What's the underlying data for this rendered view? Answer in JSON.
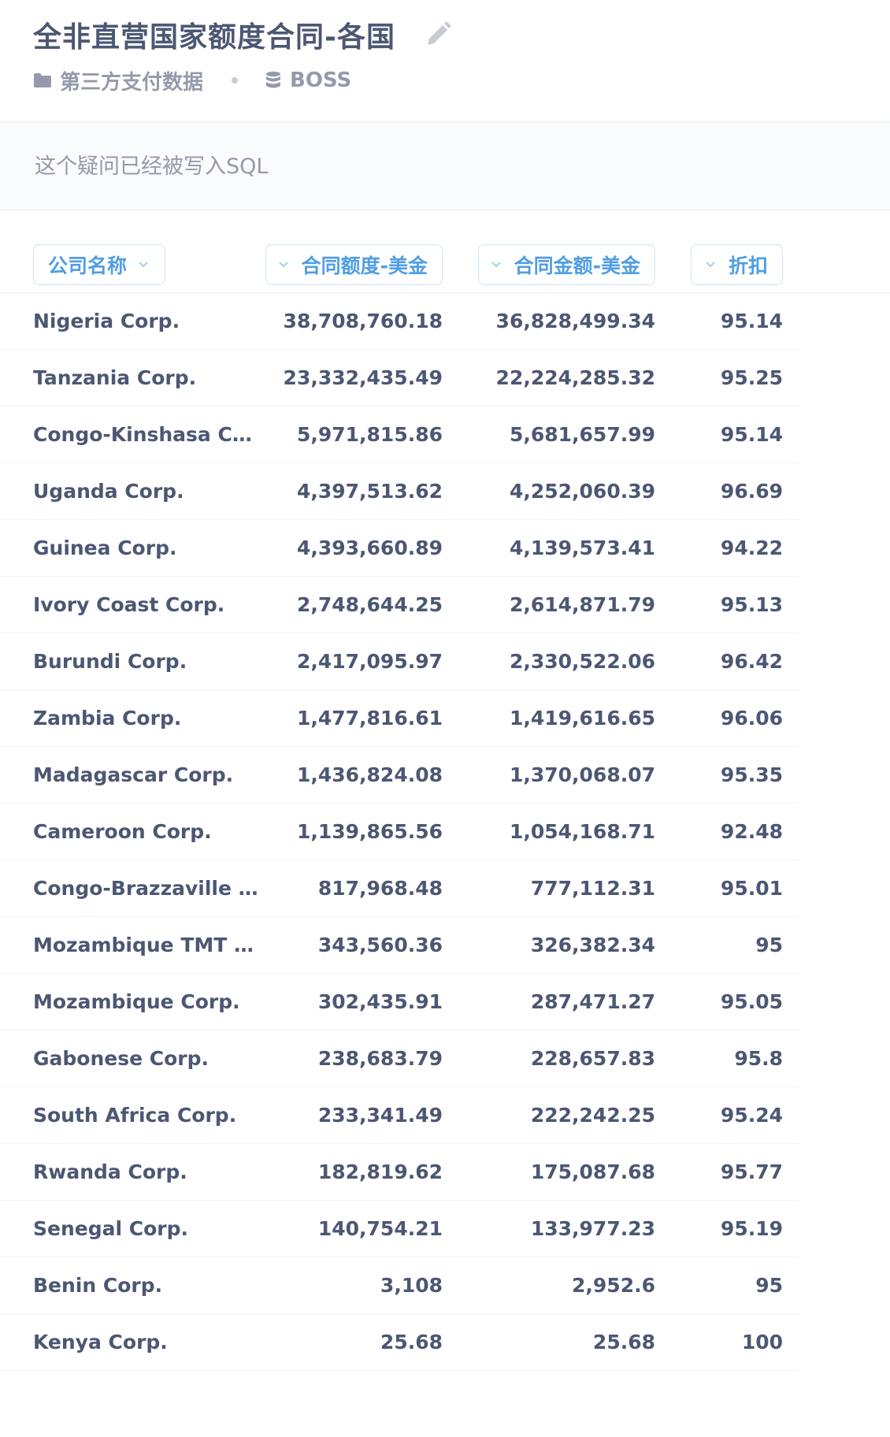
{
  "header": {
    "title": "全非直营国家额度合同-各国",
    "collection_label": "第三方支付数据",
    "database_label": "BOSS"
  },
  "notice": {
    "text": "这个疑问已经被写入SQL"
  },
  "columns": [
    {
      "label": "公司名称"
    },
    {
      "label": "合同额度-美金"
    },
    {
      "label": "合同金额-美金"
    },
    {
      "label": "折扣"
    }
  ],
  "rows": [
    {
      "name": "Nigeria Corp.",
      "quota": "38,708,760.18",
      "amount": "36,828,499.34",
      "discount": "95.14"
    },
    {
      "name": "Tanzania Corp.",
      "quota": "23,332,435.49",
      "amount": "22,224,285.32",
      "discount": "95.25"
    },
    {
      "name": "Congo-Kinshasa Corp.",
      "quota": "5,971,815.86",
      "amount": "5,681,657.99",
      "discount": "95.14"
    },
    {
      "name": "Uganda Corp.",
      "quota": "4,397,513.62",
      "amount": "4,252,060.39",
      "discount": "96.69"
    },
    {
      "name": "Guinea Corp.",
      "quota": "4,393,660.89",
      "amount": "4,139,573.41",
      "discount": "94.22"
    },
    {
      "name": "Ivory Coast Corp.",
      "quota": "2,748,644.25",
      "amount": "2,614,871.79",
      "discount": "95.13"
    },
    {
      "name": "Burundi Corp.",
      "quota": "2,417,095.97",
      "amount": "2,330,522.06",
      "discount": "96.42"
    },
    {
      "name": "Zambia Corp.",
      "quota": "1,477,816.61",
      "amount": "1,419,616.65",
      "discount": "96.06"
    },
    {
      "name": "Madagascar Corp.",
      "quota": "1,436,824.08",
      "amount": "1,370,068.07",
      "discount": "95.35"
    },
    {
      "name": "Cameroon Corp.",
      "quota": "1,139,865.56",
      "amount": "1,054,168.71",
      "discount": "92.48"
    },
    {
      "name": "Congo-Brazzaville C…",
      "quota": "817,968.48",
      "amount": "777,112.31",
      "discount": "95.01"
    },
    {
      "name": "Mozambique TMT C…",
      "quota": "343,560.36",
      "amount": "326,382.34",
      "discount": "95"
    },
    {
      "name": "Mozambique Corp.",
      "quota": "302,435.91",
      "amount": "287,471.27",
      "discount": "95.05"
    },
    {
      "name": "Gabonese Corp.",
      "quota": "238,683.79",
      "amount": "228,657.83",
      "discount": "95.8"
    },
    {
      "name": "South Africa Corp.",
      "quota": "233,341.49",
      "amount": "222,242.25",
      "discount": "95.24"
    },
    {
      "name": "Rwanda Corp.",
      "quota": "182,819.62",
      "amount": "175,087.68",
      "discount": "95.77"
    },
    {
      "name": "Senegal Corp.",
      "quota": "140,754.21",
      "amount": "133,977.23",
      "discount": "95.19"
    },
    {
      "name": "Benin Corp.",
      "quota": "3,108",
      "amount": "2,952.6",
      "discount": "95"
    },
    {
      "name": "Kenya Corp.",
      "quota": "25.68",
      "amount": "25.68",
      "discount": "100"
    }
  ],
  "icons": {
    "edit": "pencil-icon",
    "collection": "folder-icon",
    "database": "database-icon",
    "sort": "chevron-down-icon"
  },
  "colors": {
    "brand": "#509ee3",
    "text": "#4c5773",
    "muted": "#949aab"
  }
}
